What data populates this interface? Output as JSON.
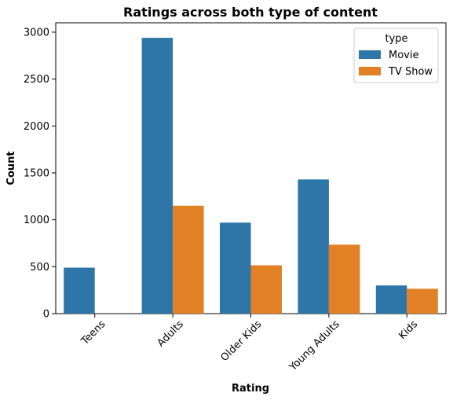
{
  "chart_data": {
    "type": "bar",
    "title": "Ratings across both type of content",
    "xlabel": "Rating",
    "ylabel": "Count",
    "categories": [
      "Teens",
      "Adults",
      "Older Kids",
      "Young Adults",
      "Kids"
    ],
    "series": [
      {
        "name": "Movie",
        "color": "#2e75a8",
        "values": [
          490,
          2940,
          970,
          1430,
          300
        ]
      },
      {
        "name": "TV Show",
        "color": "#e28026",
        "values": [
          0,
          1150,
          515,
          735,
          265
        ]
      }
    ],
    "ylim": [
      0,
      3100
    ],
    "yticks": [
      0,
      500,
      1000,
      1500,
      2000,
      2500,
      3000
    ],
    "grid": false,
    "legend": {
      "title": "type",
      "position": "top-right"
    }
  }
}
